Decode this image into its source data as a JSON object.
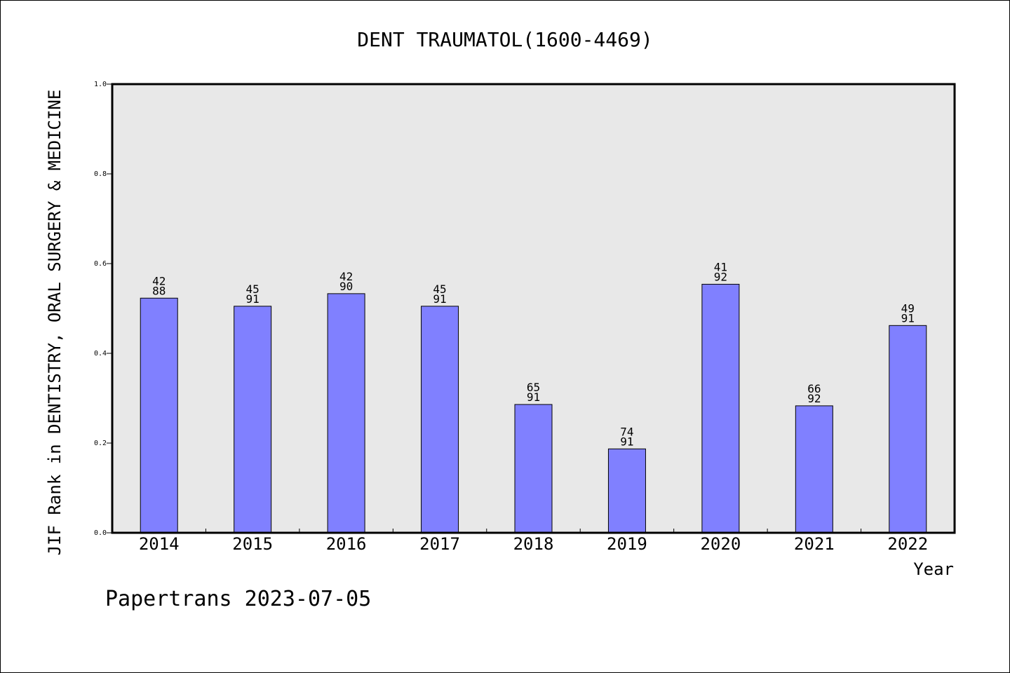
{
  "chart_data": {
    "type": "bar",
    "title": "DENT TRAUMATOL(1600-4469)",
    "xlabel": "Year",
    "ylabel": "JIF Rank in DENTISTRY, ORAL SURGERY & MEDICINE",
    "ylim": [
      0,
      1.0
    ],
    "yticks": [
      "0.0",
      "0.2",
      "0.4",
      "0.6",
      "0.8",
      "1.0"
    ],
    "categories": [
      "2014",
      "2015",
      "2016",
      "2017",
      "2018",
      "2019",
      "2020",
      "2021",
      "2022"
    ],
    "values": [
      0.523,
      0.505,
      0.533,
      0.505,
      0.286,
      0.187,
      0.554,
      0.283,
      0.462
    ],
    "ranks": [
      "42",
      "45",
      "42",
      "45",
      "65",
      "74",
      "41",
      "66",
      "49"
    ],
    "totals": [
      "88",
      "91",
      "90",
      "91",
      "91",
      "91",
      "92",
      "92",
      "91"
    ],
    "bar_color": "#8080ff",
    "plot_background": "#e8e8e8",
    "grid": false
  },
  "footer": "Papertrans 2023-07-05"
}
